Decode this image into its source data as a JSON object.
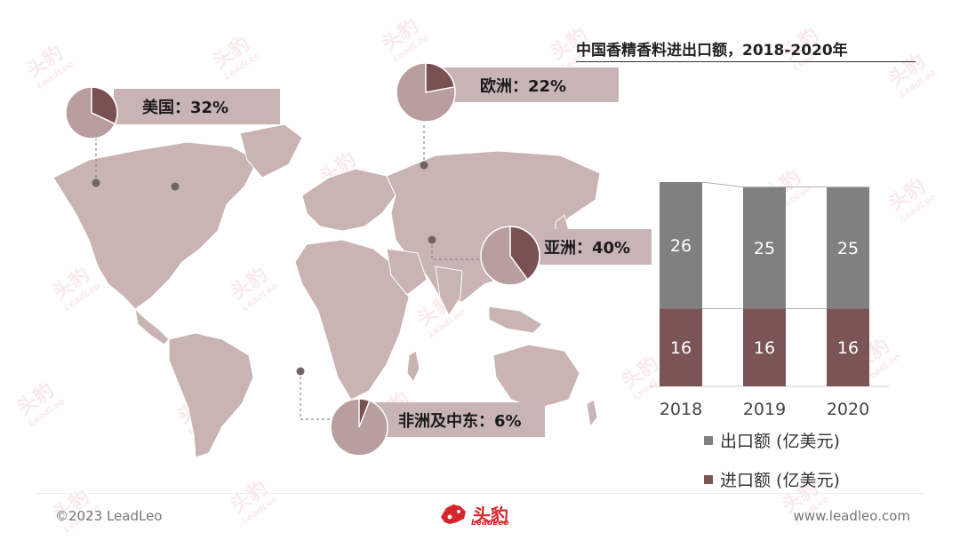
{
  "colors": {
    "map_fill": "#c9b3b3",
    "pie_base": "#b89e9e",
    "pie_slice": "#7a5153",
    "label_bg": "#c8b4b4",
    "export_color": "#808080",
    "import_color": "#7b5456",
    "brand_red": "#d7262b"
  },
  "map": {
    "markers": [
      {
        "name": "美国",
        "value": "美国：32%",
        "share": 32
      },
      {
        "name": "欧洲",
        "value": "欧洲：22%",
        "share": 22
      },
      {
        "name": "亚洲",
        "value": "亚洲：40%",
        "share": 40
      },
      {
        "name": "非洲及中东",
        "value": "非洲及中东：6%",
        "share": 6
      }
    ]
  },
  "chart_data": {
    "type": "bar",
    "stacked": true,
    "title": "中国香精香料进出口额，2018-2020年",
    "categories": [
      "2018",
      "2019",
      "2020"
    ],
    "series": [
      {
        "name": "进口额 (亿美元)",
        "values": [
          16,
          16,
          16
        ],
        "color": "#7b5456"
      },
      {
        "name": "出口额 (亿美元)",
        "values": [
          26,
          25,
          25
        ],
        "color": "#808080"
      }
    ],
    "legend": [
      "出口额 (亿美元)",
      "进口额 (亿美元)"
    ],
    "legend_position": "bottom",
    "grid": false
  },
  "footer": {
    "copyright": "©2023 LeadLeo",
    "website": "www.leadleo.com",
    "logo_text": "头豹",
    "logo_sub": "LeadLeo"
  },
  "watermark": {
    "text": "头豹",
    "sub": "LeadLeo"
  }
}
